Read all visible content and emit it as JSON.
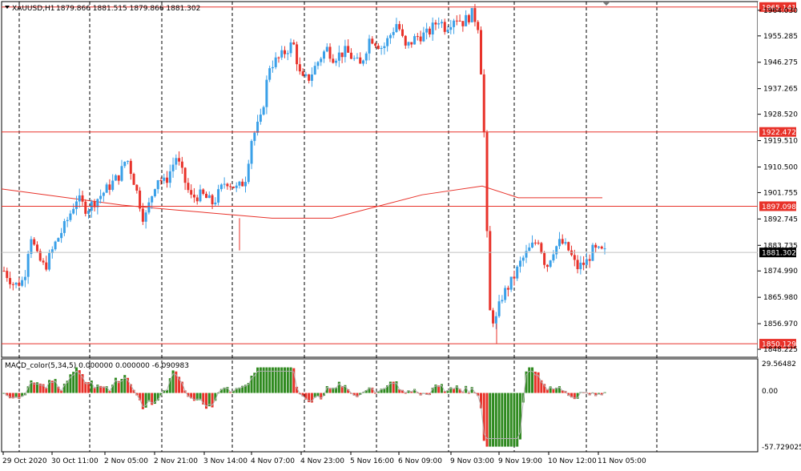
{
  "header": {
    "symbol_label": "XAUUSD,H1",
    "ohlc": "1879.866 1881.515 1879.866 1881.302"
  },
  "macd": {
    "label": "MACD_color(5,34,5) 0.000000 0.000000 -6.090983",
    "axis_top": "29.56482",
    "axis_zero": "0.00",
    "axis_bottom": "-57.729025"
  },
  "price_axis": {
    "ticks": [
      "1964.030",
      "1955.285",
      "1946.275",
      "1937.265",
      "1928.520",
      "1919.510",
      "1910.500",
      "1901.755",
      "1892.745",
      "1883.735",
      "1874.990",
      "1865.980",
      "1856.970",
      "1848.225"
    ]
  },
  "time_axis": {
    "labels": [
      "29 Oct 2020",
      "30 Oct 11:00",
      "2 Nov 05:00",
      "2 Nov 21:00",
      "3 Nov 14:00",
      "4 Nov 07:00",
      "4 Nov 23:00",
      "5 Nov 16:00",
      "6 Nov 09:00",
      "9 Nov 03:00",
      "9 Nov 19:00",
      "10 Nov 12:00",
      "11 Nov 05:00"
    ]
  },
  "levels": [
    {
      "name": "hline-1965",
      "label": "1965.141",
      "price": 1965.141,
      "style": "tag"
    },
    {
      "name": "hline-1922",
      "label": "1922.472",
      "price": 1922.472,
      "style": "tag"
    },
    {
      "name": "hline-1897",
      "label": "1897.098",
      "price": 1897.098,
      "style": "tag"
    },
    {
      "name": "hline-current",
      "label": "1881.302",
      "price": 1881.302,
      "style": "current"
    },
    {
      "name": "hline-1850",
      "label": "1850.129",
      "price": 1850.129,
      "style": "tag"
    }
  ],
  "colors": {
    "bull": "#3aa0e8",
    "bear": "#e8322a",
    "level": "#e8322a",
    "ma": "#e8322a",
    "macd_up": "#2f8a1f",
    "macd_down": "#e8322a",
    "macd_signal": "#b0b0b0",
    "grid": "#000000",
    "current_tag": "#000000"
  },
  "chart_data": {
    "type": "candlestick",
    "instrument": "XAUUSD",
    "timeframe": "H1",
    "y_range": [
      1845.5,
      1967.0
    ],
    "bars": 200,
    "moving_average": {
      "start": 1903,
      "points": [
        [
          0,
          1903
        ],
        [
          0.2,
          1897.5
        ],
        [
          0.28,
          1896
        ],
        [
          0.45,
          1893
        ],
        [
          0.55,
          1893
        ],
        [
          0.7,
          1901
        ],
        [
          0.8,
          1904
        ],
        [
          0.86,
          1900
        ],
        [
          1,
          1900
        ]
      ]
    },
    "macd_range": [
      -57.729025,
      29.56482
    ]
  }
}
